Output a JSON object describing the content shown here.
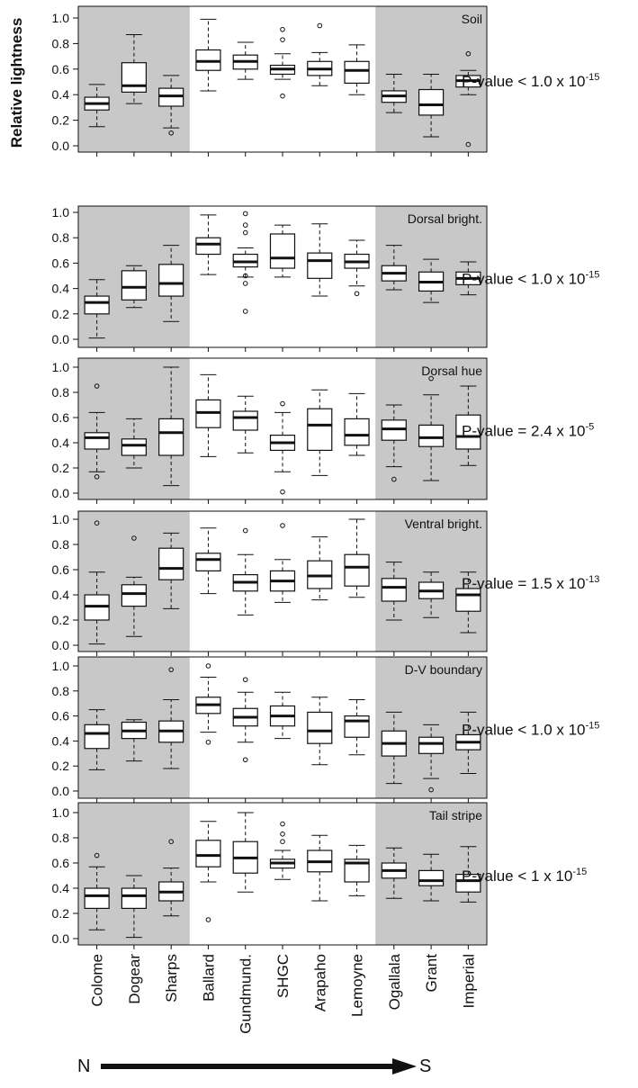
{
  "figure": {
    "ylabel": "Relative lightness",
    "direction_start": "N",
    "direction_end": "S",
    "shade_color": "#c8c8c8",
    "box_fill": "#ffffff",
    "line_color": "#111111",
    "pvalue_prefix": "P-value"
  },
  "chart_data": [
    {
      "type": "boxplot",
      "panel_label": "Soil",
      "pvalue": {
        "relation": "<",
        "mantissa": "1.0",
        "exponent": "-15"
      },
      "categories": [
        "Colome",
        "Dogear",
        "Sharps",
        "Ballard",
        "Gundmund.",
        "SHGC",
        "Arapaho",
        "Lemoyne",
        "Ogallala",
        "Grant",
        "Imperial"
      ],
      "shaded_groups": [
        [
          0,
          2
        ],
        [
          8,
          10
        ]
      ],
      "ylim": [
        0,
        1.0
      ],
      "yticks": [
        "0.0",
        "0.2",
        "0.4",
        "0.6",
        "0.8",
        "1.0"
      ],
      "boxes": [
        {
          "wlo": 0.15,
          "q1": 0.28,
          "med": 0.33,
          "q3": 0.38,
          "whi": 0.48,
          "out": []
        },
        {
          "wlo": 0.33,
          "q1": 0.42,
          "med": 0.47,
          "q3": 0.65,
          "whi": 0.87,
          "out": []
        },
        {
          "wlo": 0.14,
          "q1": 0.31,
          "med": 0.39,
          "q3": 0.45,
          "whi": 0.55,
          "out": [
            0.1
          ]
        },
        {
          "wlo": 0.43,
          "q1": 0.59,
          "med": 0.66,
          "q3": 0.75,
          "whi": 0.99,
          "out": []
        },
        {
          "wlo": 0.52,
          "q1": 0.6,
          "med": 0.66,
          "q3": 0.71,
          "whi": 0.81,
          "out": []
        },
        {
          "wlo": 0.52,
          "q1": 0.56,
          "med": 0.6,
          "q3": 0.63,
          "whi": 0.72,
          "out": [
            0.39,
            0.83,
            0.91
          ]
        },
        {
          "wlo": 0.47,
          "q1": 0.55,
          "med": 0.6,
          "q3": 0.66,
          "whi": 0.73,
          "out": [
            0.94
          ]
        },
        {
          "wlo": 0.4,
          "q1": 0.49,
          "med": 0.59,
          "q3": 0.66,
          "whi": 0.79,
          "out": []
        },
        {
          "wlo": 0.26,
          "q1": 0.34,
          "med": 0.39,
          "q3": 0.43,
          "whi": 0.56,
          "out": []
        },
        {
          "wlo": 0.07,
          "q1": 0.24,
          "med": 0.32,
          "q3": 0.44,
          "whi": 0.56,
          "out": []
        },
        {
          "wlo": 0.4,
          "q1": 0.46,
          "med": 0.51,
          "q3": 0.55,
          "whi": 0.59,
          "out": [
            0.01,
            0.72
          ]
        }
      ]
    },
    {
      "type": "boxplot",
      "panel_label": "Dorsal bright.",
      "pvalue": {
        "relation": "<",
        "mantissa": "1.0",
        "exponent": "-15"
      },
      "categories": [
        "Colome",
        "Dogear",
        "Sharps",
        "Ballard",
        "Gundmund.",
        "SHGC",
        "Arapaho",
        "Lemoyne",
        "Ogallala",
        "Grant",
        "Imperial"
      ],
      "shaded_groups": [
        [
          0,
          2
        ],
        [
          8,
          10
        ]
      ],
      "ylim": [
        0,
        1.0
      ],
      "yticks": [
        "0.0",
        "0.2",
        "0.4",
        "0.6",
        "0.8",
        "1.0"
      ],
      "boxes": [
        {
          "wlo": 0.01,
          "q1": 0.2,
          "med": 0.29,
          "q3": 0.34,
          "whi": 0.47,
          "out": []
        },
        {
          "wlo": 0.25,
          "q1": 0.31,
          "med": 0.41,
          "q3": 0.54,
          "whi": 0.58,
          "out": []
        },
        {
          "wlo": 0.14,
          "q1": 0.34,
          "med": 0.44,
          "q3": 0.59,
          "whi": 0.74,
          "out": []
        },
        {
          "wlo": 0.51,
          "q1": 0.67,
          "med": 0.75,
          "q3": 0.8,
          "whi": 0.98,
          "out": []
        },
        {
          "wlo": 0.49,
          "q1": 0.57,
          "med": 0.61,
          "q3": 0.67,
          "whi": 0.72,
          "out": [
            0.22,
            0.44,
            0.5,
            0.84,
            0.9,
            0.99
          ]
        },
        {
          "wlo": 0.49,
          "q1": 0.56,
          "med": 0.64,
          "q3": 0.83,
          "whi": 0.9,
          "out": []
        },
        {
          "wlo": 0.34,
          "q1": 0.48,
          "med": 0.62,
          "q3": 0.68,
          "whi": 0.91,
          "out": []
        },
        {
          "wlo": 0.42,
          "q1": 0.56,
          "med": 0.61,
          "q3": 0.67,
          "whi": 0.78,
          "out": [
            0.36
          ]
        },
        {
          "wlo": 0.39,
          "q1": 0.46,
          "med": 0.52,
          "q3": 0.58,
          "whi": 0.74,
          "out": []
        },
        {
          "wlo": 0.29,
          "q1": 0.38,
          "med": 0.45,
          "q3": 0.53,
          "whi": 0.63,
          "out": []
        },
        {
          "wlo": 0.35,
          "q1": 0.43,
          "med": 0.48,
          "q3": 0.53,
          "whi": 0.61,
          "out": []
        }
      ]
    },
    {
      "type": "boxplot",
      "panel_label": "Dorsal hue",
      "pvalue": {
        "relation": "=",
        "mantissa": "2.4",
        "exponent": "-5"
      },
      "categories": [
        "Colome",
        "Dogear",
        "Sharps",
        "Ballard",
        "Gundmund.",
        "SHGC",
        "Arapaho",
        "Lemoyne",
        "Ogallala",
        "Grant",
        "Imperial"
      ],
      "shaded_groups": [
        [
          0,
          2
        ],
        [
          8,
          10
        ]
      ],
      "ylim": [
        0,
        1.0
      ],
      "yticks": [
        "0.0",
        "0.2",
        "0.4",
        "0.6",
        "0.8",
        "1.0"
      ],
      "boxes": [
        {
          "wlo": 0.17,
          "q1": 0.35,
          "med": 0.44,
          "q3": 0.48,
          "whi": 0.64,
          "out": [
            0.13,
            0.85
          ]
        },
        {
          "wlo": 0.2,
          "q1": 0.3,
          "med": 0.38,
          "q3": 0.43,
          "whi": 0.59,
          "out": []
        },
        {
          "wlo": 0.06,
          "q1": 0.3,
          "med": 0.48,
          "q3": 0.59,
          "whi": 1.0,
          "out": []
        },
        {
          "wlo": 0.29,
          "q1": 0.52,
          "med": 0.64,
          "q3": 0.74,
          "whi": 0.94,
          "out": []
        },
        {
          "wlo": 0.32,
          "q1": 0.5,
          "med": 0.6,
          "q3": 0.65,
          "whi": 0.77,
          "out": []
        },
        {
          "wlo": 0.17,
          "q1": 0.34,
          "med": 0.4,
          "q3": 0.46,
          "whi": 0.64,
          "out": [
            0.01,
            0.71
          ]
        },
        {
          "wlo": 0.14,
          "q1": 0.34,
          "med": 0.54,
          "q3": 0.67,
          "whi": 0.82,
          "out": []
        },
        {
          "wlo": 0.3,
          "q1": 0.38,
          "med": 0.46,
          "q3": 0.59,
          "whi": 0.79,
          "out": []
        },
        {
          "wlo": 0.21,
          "q1": 0.42,
          "med": 0.51,
          "q3": 0.58,
          "whi": 0.7,
          "out": [
            0.11
          ]
        },
        {
          "wlo": 0.1,
          "q1": 0.37,
          "med": 0.44,
          "q3": 0.54,
          "whi": 0.78,
          "out": [
            0.91
          ]
        },
        {
          "wlo": 0.22,
          "q1": 0.35,
          "med": 0.45,
          "q3": 0.62,
          "whi": 0.85,
          "out": []
        }
      ]
    },
    {
      "type": "boxplot",
      "panel_label": "Ventral bright.",
      "pvalue": {
        "relation": "=",
        "mantissa": "1.5",
        "exponent": "-13"
      },
      "categories": [
        "Colome",
        "Dogear",
        "Sharps",
        "Ballard",
        "Gundmund.",
        "SHGC",
        "Arapaho",
        "Lemoyne",
        "Ogallala",
        "Grant",
        "Imperial"
      ],
      "shaded_groups": [
        [
          0,
          2
        ],
        [
          8,
          10
        ]
      ],
      "ylim": [
        0,
        1.0
      ],
      "yticks": [
        "0.0",
        "0.2",
        "0.4",
        "0.6",
        "0.8",
        "1.0"
      ],
      "boxes": [
        {
          "wlo": 0.01,
          "q1": 0.2,
          "med": 0.31,
          "q3": 0.4,
          "whi": 0.58,
          "out": [
            0.97
          ]
        },
        {
          "wlo": 0.07,
          "q1": 0.31,
          "med": 0.41,
          "q3": 0.48,
          "whi": 0.54,
          "out": [
            0.85
          ]
        },
        {
          "wlo": 0.29,
          "q1": 0.52,
          "med": 0.61,
          "q3": 0.77,
          "whi": 0.89,
          "out": []
        },
        {
          "wlo": 0.41,
          "q1": 0.59,
          "med": 0.68,
          "q3": 0.73,
          "whi": 0.93,
          "out": []
        },
        {
          "wlo": 0.24,
          "q1": 0.43,
          "med": 0.5,
          "q3": 0.56,
          "whi": 0.72,
          "out": [
            0.91
          ]
        },
        {
          "wlo": 0.34,
          "q1": 0.43,
          "med": 0.51,
          "q3": 0.59,
          "whi": 0.68,
          "out": [
            0.95
          ]
        },
        {
          "wlo": 0.36,
          "q1": 0.45,
          "med": 0.55,
          "q3": 0.67,
          "whi": 0.86,
          "out": []
        },
        {
          "wlo": 0.38,
          "q1": 0.47,
          "med": 0.62,
          "q3": 0.72,
          "whi": 1.0,
          "out": []
        },
        {
          "wlo": 0.2,
          "q1": 0.35,
          "med": 0.46,
          "q3": 0.53,
          "whi": 0.66,
          "out": []
        },
        {
          "wlo": 0.22,
          "q1": 0.37,
          "med": 0.43,
          "q3": 0.5,
          "whi": 0.58,
          "out": []
        },
        {
          "wlo": 0.1,
          "q1": 0.27,
          "med": 0.4,
          "q3": 0.45,
          "whi": 0.58,
          "out": []
        }
      ]
    },
    {
      "type": "boxplot",
      "panel_label": "D-V boundary",
      "pvalue": {
        "relation": "<",
        "mantissa": "1.0",
        "exponent": "-15"
      },
      "categories": [
        "Colome",
        "Dogear",
        "Sharps",
        "Ballard",
        "Gundmund.",
        "SHGC",
        "Arapaho",
        "Lemoyne",
        "Ogallala",
        "Grant",
        "Imperial"
      ],
      "shaded_groups": [
        [
          0,
          2
        ],
        [
          8,
          10
        ]
      ],
      "ylim": [
        0,
        1.0
      ],
      "yticks": [
        "0.0",
        "0.2",
        "0.4",
        "0.6",
        "0.8",
        "1.0"
      ],
      "boxes": [
        {
          "wlo": 0.17,
          "q1": 0.34,
          "med": 0.46,
          "q3": 0.53,
          "whi": 0.65,
          "out": []
        },
        {
          "wlo": 0.24,
          "q1": 0.42,
          "med": 0.48,
          "q3": 0.55,
          "whi": 0.57,
          "out": []
        },
        {
          "wlo": 0.18,
          "q1": 0.39,
          "med": 0.48,
          "q3": 0.56,
          "whi": 0.73,
          "out": [
            0.97
          ]
        },
        {
          "wlo": 0.47,
          "q1": 0.62,
          "med": 0.69,
          "q3": 0.75,
          "whi": 0.91,
          "out": [
            0.39,
            1.0
          ]
        },
        {
          "wlo": 0.39,
          "q1": 0.52,
          "med": 0.59,
          "q3": 0.66,
          "whi": 0.79,
          "out": [
            0.25,
            0.89
          ]
        },
        {
          "wlo": 0.42,
          "q1": 0.52,
          "med": 0.6,
          "q3": 0.68,
          "whi": 0.79,
          "out": []
        },
        {
          "wlo": 0.21,
          "q1": 0.38,
          "med": 0.48,
          "q3": 0.63,
          "whi": 0.75,
          "out": []
        },
        {
          "wlo": 0.29,
          "q1": 0.43,
          "med": 0.56,
          "q3": 0.6,
          "whi": 0.73,
          "out": []
        },
        {
          "wlo": 0.06,
          "q1": 0.28,
          "med": 0.38,
          "q3": 0.48,
          "whi": 0.63,
          "out": []
        },
        {
          "wlo": 0.1,
          "q1": 0.3,
          "med": 0.38,
          "q3": 0.43,
          "whi": 0.53,
          "out": [
            0.01
          ]
        },
        {
          "wlo": 0.14,
          "q1": 0.33,
          "med": 0.39,
          "q3": 0.45,
          "whi": 0.63,
          "out": []
        }
      ]
    },
    {
      "type": "boxplot",
      "panel_label": "Tail stripe",
      "pvalue": {
        "relation": "<",
        "mantissa": "1",
        "exponent": "-15"
      },
      "categories": [
        "Colome",
        "Dogear",
        "Sharps",
        "Ballard",
        "Gundmund.",
        "SHGC",
        "Arapaho",
        "Lemoyne",
        "Ogallala",
        "Grant",
        "Imperial"
      ],
      "shaded_groups": [
        [
          0,
          2
        ],
        [
          8,
          10
        ]
      ],
      "ylim": [
        0,
        1.0
      ],
      "yticks": [
        "0.0",
        "0.2",
        "0.4",
        "0.6",
        "0.8",
        "1.0"
      ],
      "boxes": [
        {
          "wlo": 0.07,
          "q1": 0.24,
          "med": 0.34,
          "q3": 0.4,
          "whi": 0.57,
          "out": [
            0.66
          ]
        },
        {
          "wlo": 0.01,
          "q1": 0.24,
          "med": 0.34,
          "q3": 0.4,
          "whi": 0.5,
          "out": []
        },
        {
          "wlo": 0.18,
          "q1": 0.3,
          "med": 0.37,
          "q3": 0.45,
          "whi": 0.56,
          "out": [
            0.77
          ]
        },
        {
          "wlo": 0.45,
          "q1": 0.57,
          "med": 0.66,
          "q3": 0.78,
          "whi": 0.93,
          "out": [
            0.15
          ]
        },
        {
          "wlo": 0.37,
          "q1": 0.52,
          "med": 0.64,
          "q3": 0.77,
          "whi": 1.0,
          "out": []
        },
        {
          "wlo": 0.47,
          "q1": 0.56,
          "med": 0.6,
          "q3": 0.63,
          "whi": 0.7,
          "out": [
            0.77,
            0.83,
            0.91
          ]
        },
        {
          "wlo": 0.3,
          "q1": 0.53,
          "med": 0.61,
          "q3": 0.7,
          "whi": 0.82,
          "out": []
        },
        {
          "wlo": 0.34,
          "q1": 0.45,
          "med": 0.6,
          "q3": 0.63,
          "whi": 0.74,
          "out": []
        },
        {
          "wlo": 0.32,
          "q1": 0.48,
          "med": 0.54,
          "q3": 0.6,
          "whi": 0.72,
          "out": []
        },
        {
          "wlo": 0.3,
          "q1": 0.42,
          "med": 0.46,
          "q3": 0.54,
          "whi": 0.67,
          "out": []
        },
        {
          "wlo": 0.29,
          "q1": 0.37,
          "med": 0.46,
          "q3": 0.51,
          "whi": 0.73,
          "out": []
        }
      ]
    }
  ]
}
